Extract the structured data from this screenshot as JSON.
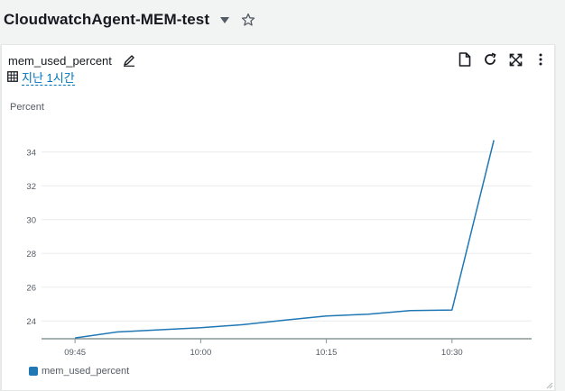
{
  "header": {
    "title": "CloudwatchAgent-MEM-test",
    "dropdown_icon": "caret-down-icon",
    "favorite_icon": "star-outline-icon"
  },
  "widget": {
    "title": "mem_used_percent",
    "edit_icon": "pencil-icon",
    "time_icon": "calendar-grid-icon",
    "time_range": "지난 1시간",
    "actions": [
      "document-icon",
      "refresh-icon",
      "fullscreen-icon",
      "more-vert-icon"
    ]
  },
  "colors": {
    "series": "#1f77b4",
    "link": "#0073bb",
    "grid": "#e9ebed",
    "axis": "#879596"
  },
  "chart_data": {
    "type": "line",
    "ylabel": "Percent",
    "xlabel": "",
    "title": "",
    "yticks": [
      "24",
      "26",
      "28",
      "30",
      "32",
      "34"
    ],
    "ytick_values": [
      24,
      26,
      28,
      30,
      32,
      34
    ],
    "xticks": [
      "09:45",
      "10:00",
      "10:15",
      "10:30"
    ],
    "xtick_minutes": [
      45,
      60,
      75,
      90
    ],
    "xlim_minutes": [
      41,
      99.5
    ],
    "ylim": [
      22.95,
      35.0
    ],
    "grid": true,
    "legend_position": "bottom-left",
    "series": [
      {
        "name": "mem_used_percent",
        "x_minutes": [
          45,
          50,
          55,
          60,
          65,
          70,
          75,
          80,
          85,
          90,
          95
        ],
        "x": [
          "09:45",
          "09:50",
          "09:55",
          "10:00",
          "10:05",
          "10:10",
          "10:15",
          "10:20",
          "10:25",
          "10:30",
          "10:35"
        ],
        "values": [
          23.0,
          23.35,
          23.48,
          23.6,
          23.78,
          24.05,
          24.3,
          24.4,
          24.62,
          24.65,
          34.7
        ]
      }
    ]
  }
}
